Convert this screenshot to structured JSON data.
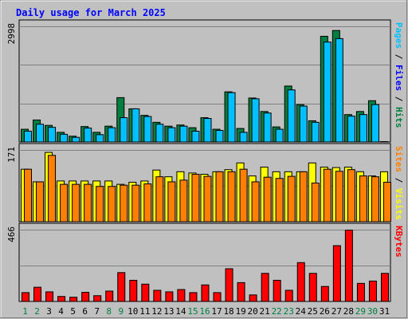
{
  "chart_data": {
    "type": "bar",
    "title": "Daily usage for March 2025",
    "categories": [
      "1",
      "2",
      "3",
      "4",
      "5",
      "6",
      "7",
      "8",
      "9",
      "10",
      "11",
      "12",
      "13",
      "14",
      "15",
      "16",
      "17",
      "18",
      "19",
      "20",
      "21",
      "22",
      "23",
      "24",
      "25",
      "26",
      "27",
      "28",
      "29",
      "30",
      "31"
    ],
    "weekend_days": [
      "1",
      "2",
      "8",
      "9",
      "15",
      "16",
      "22",
      "23",
      "29",
      "30"
    ],
    "panels": [
      {
        "id": "pages",
        "max_label": "2998",
        "ylim": [
          0,
          2998
        ],
        "side_labels": [
          "Pages",
          "Files",
          "Hits"
        ],
        "series": [
          {
            "name": "Hits",
            "color": "#008040",
            "values": [
              340,
              580,
              440,
              260,
              160,
              410,
              260,
              420,
              1160,
              870,
              700,
              520,
              420,
              450,
              380,
              640,
              340,
              1310,
              360,
              1150,
              800,
              400,
              1460,
              980,
              560,
              2750,
              2900,
              720,
              800,
              1080,
              2
            ]
          },
          {
            "name": "Files",
            "color": "#00c0ff",
            "values": [
              290,
              470,
              390,
              210,
              130,
              370,
              200,
              380,
              640,
              870,
              670,
              470,
              380,
              420,
              290,
              620,
              310,
              1290,
              260,
              1130,
              760,
              340,
              1360,
              940,
              520,
              2600,
              2690,
              680,
              720,
              980,
              0
            ]
          }
        ]
      },
      {
        "id": "visits",
        "max_label": "171",
        "ylim": [
          0,
          171
        ],
        "side_labels": [
          "Sites",
          "Visits"
        ],
        "series": [
          {
            "name": "Visits",
            "color": "#ffff00",
            "values": [
              126,
              96,
              166,
              98,
              98,
              98,
              98,
              98,
              90,
              95,
              98,
              124,
              108,
              120,
              117,
              114,
              120,
              125,
              141,
              110,
              131,
              120,
              120,
              120,
              141,
              131,
              130,
              131,
              120,
              110,
              120
            ],
            "shown": [
              126,
              96,
              166,
              98,
              98,
              98,
              98,
              98,
              90,
              95,
              98,
              124,
              108,
              120,
              117,
              114,
              120,
              125,
              141,
              110,
              131,
              120,
              120,
              120,
              141,
              131,
              130,
              131,
              120,
              110,
              120
            ]
          },
          {
            "name": "Sites",
            "color": "#ff8000",
            "values": [
              126,
              96,
              159,
              90,
              90,
              90,
              85,
              85,
              88,
              88,
              91,
              108,
              96,
              100,
              114,
              109,
              120,
              120,
              126,
              96,
              107,
              104,
              109,
              120,
              93,
              126,
              121,
              125,
              110,
              108,
              95
            ]
          }
        ]
      },
      {
        "id": "kbytes",
        "max_label": "466",
        "ylim": [
          0,
          466
        ],
        "side_labels": [
          "KBytes"
        ],
        "series": [
          {
            "name": "KBytes",
            "color": "#ff0000",
            "values": [
              60,
              95,
              65,
              35,
              30,
              62,
              40,
              70,
              190,
              140,
              115,
              75,
              65,
              80,
              60,
              110,
              60,
              215,
              125,
              45,
              185,
              140,
              75,
              255,
              185,
              100,
              365,
              466,
              120,
              135,
              185
            ]
          }
        ]
      }
    ]
  }
}
